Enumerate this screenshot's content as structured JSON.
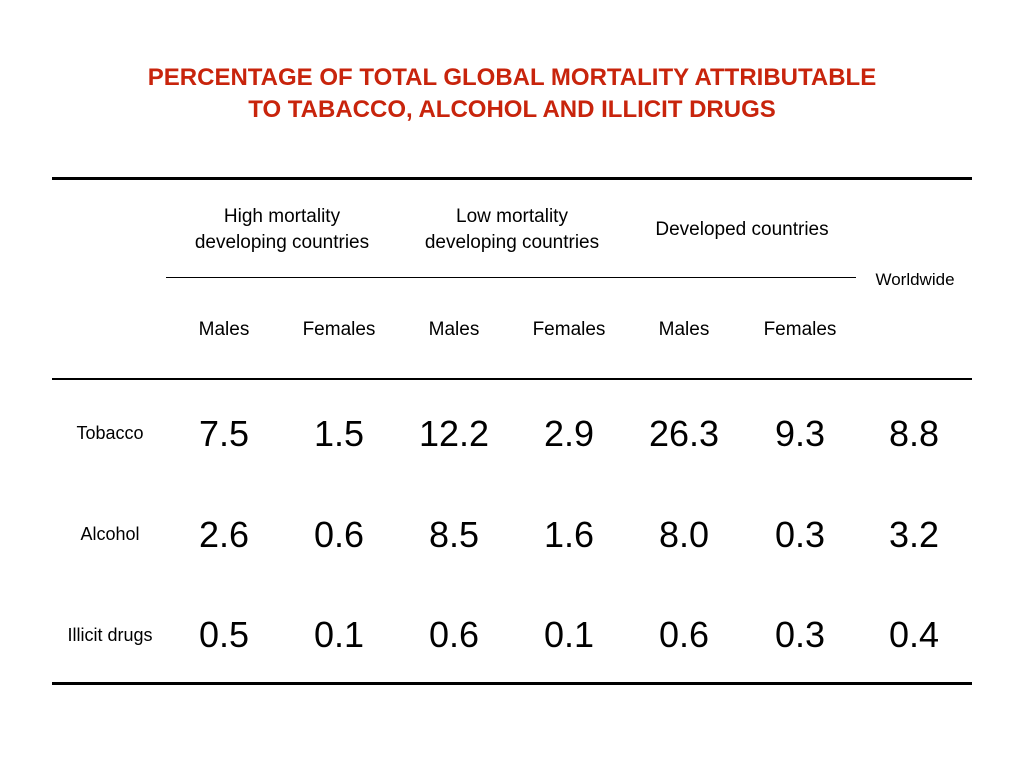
{
  "chart_data": {
    "type": "table",
    "title": [
      "PERCENTAGE OF TOTAL GLOBAL MORTALITY ATTRIBUTABLE",
      "TO TABACCO, ALCOHOL AND ILLICIT DRUGS"
    ],
    "groups": [
      [
        "High mortality",
        "developing countries"
      ],
      [
        "Low mortality",
        "developing countries"
      ],
      [
        "Developed countries"
      ]
    ],
    "subcolumns": [
      "Males",
      "Females",
      "Males",
      "Females",
      "Males",
      "Females"
    ],
    "worldwide_label": "Worldwide",
    "rows": [
      {
        "label": "Tobacco",
        "values": [
          "7.5",
          "1.5",
          "12.2",
          "2.9",
          "26.3",
          "9.3",
          "8.8"
        ]
      },
      {
        "label": "Alcohol",
        "values": [
          "2.6",
          "0.6",
          "8.5",
          "1.6",
          "8.0",
          "0.3",
          "3.2"
        ]
      },
      {
        "label": "Illicit drugs",
        "values": [
          "0.5",
          "0.1",
          "0.6",
          "0.1",
          "0.6",
          "0.3",
          "0.4"
        ]
      }
    ]
  },
  "colors": {
    "title": "#c8240c",
    "text": "#000000",
    "rules": "#000000"
  }
}
